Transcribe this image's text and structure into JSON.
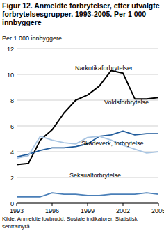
{
  "chart_data": {
    "type": "line",
    "title": "Figur 12. Anmeldte forbrytelser, etter utvalgte forbrytelsesgrupper. 1993-2005. Per 1 000 innbyggere",
    "y_label": "Per 1 000 innbyggere",
    "source": "Kilde: Anmeldte lovbrudd, Sosiale indikatorer, Statistisk sentralbyrå.",
    "x": [
      1993,
      1994,
      1995,
      1996,
      1997,
      1998,
      1999,
      2000,
      2001,
      2002,
      2003,
      2004,
      2005
    ],
    "series": [
      {
        "name": "Narkotikaforbrytelser",
        "color": "#000000",
        "values": [
          3.0,
          3.1,
          4.9,
          5.7,
          7.0,
          8.0,
          8.4,
          9.1,
          10.3,
          10.1,
          8.1,
          8.1,
          8.2
        ]
      },
      {
        "name": "Voldsforbrytelse",
        "color": "#1f5a9a",
        "values": [
          3.6,
          3.8,
          4.1,
          4.3,
          4.3,
          4.4,
          4.6,
          5.2,
          5.3,
          5.6,
          5.3,
          5.4,
          5.4
        ]
      },
      {
        "name": "Skadeverk, forbrytelse",
        "color": "#a9c5e2",
        "values": [
          3.5,
          3.7,
          5.2,
          4.9,
          4.7,
          4.6,
          5.1,
          5.2,
          4.9,
          4.5,
          4.2,
          3.9,
          4.0
        ]
      },
      {
        "name": "Seksualforbrytelse",
        "color": "#4a7fb8",
        "values": [
          0.5,
          0.5,
          0.5,
          0.8,
          0.7,
          0.7,
          0.6,
          0.6,
          0.7,
          0.7,
          0.7,
          0.8,
          0.7
        ]
      }
    ],
    "xlim": [
      1993,
      2005
    ],
    "xticks": [
      1993,
      1996,
      1999,
      2002,
      2005
    ],
    "ylim": [
      0,
      12
    ],
    "yticks": [
      0,
      2,
      4,
      6,
      8,
      10,
      12
    ],
    "grid": true
  }
}
